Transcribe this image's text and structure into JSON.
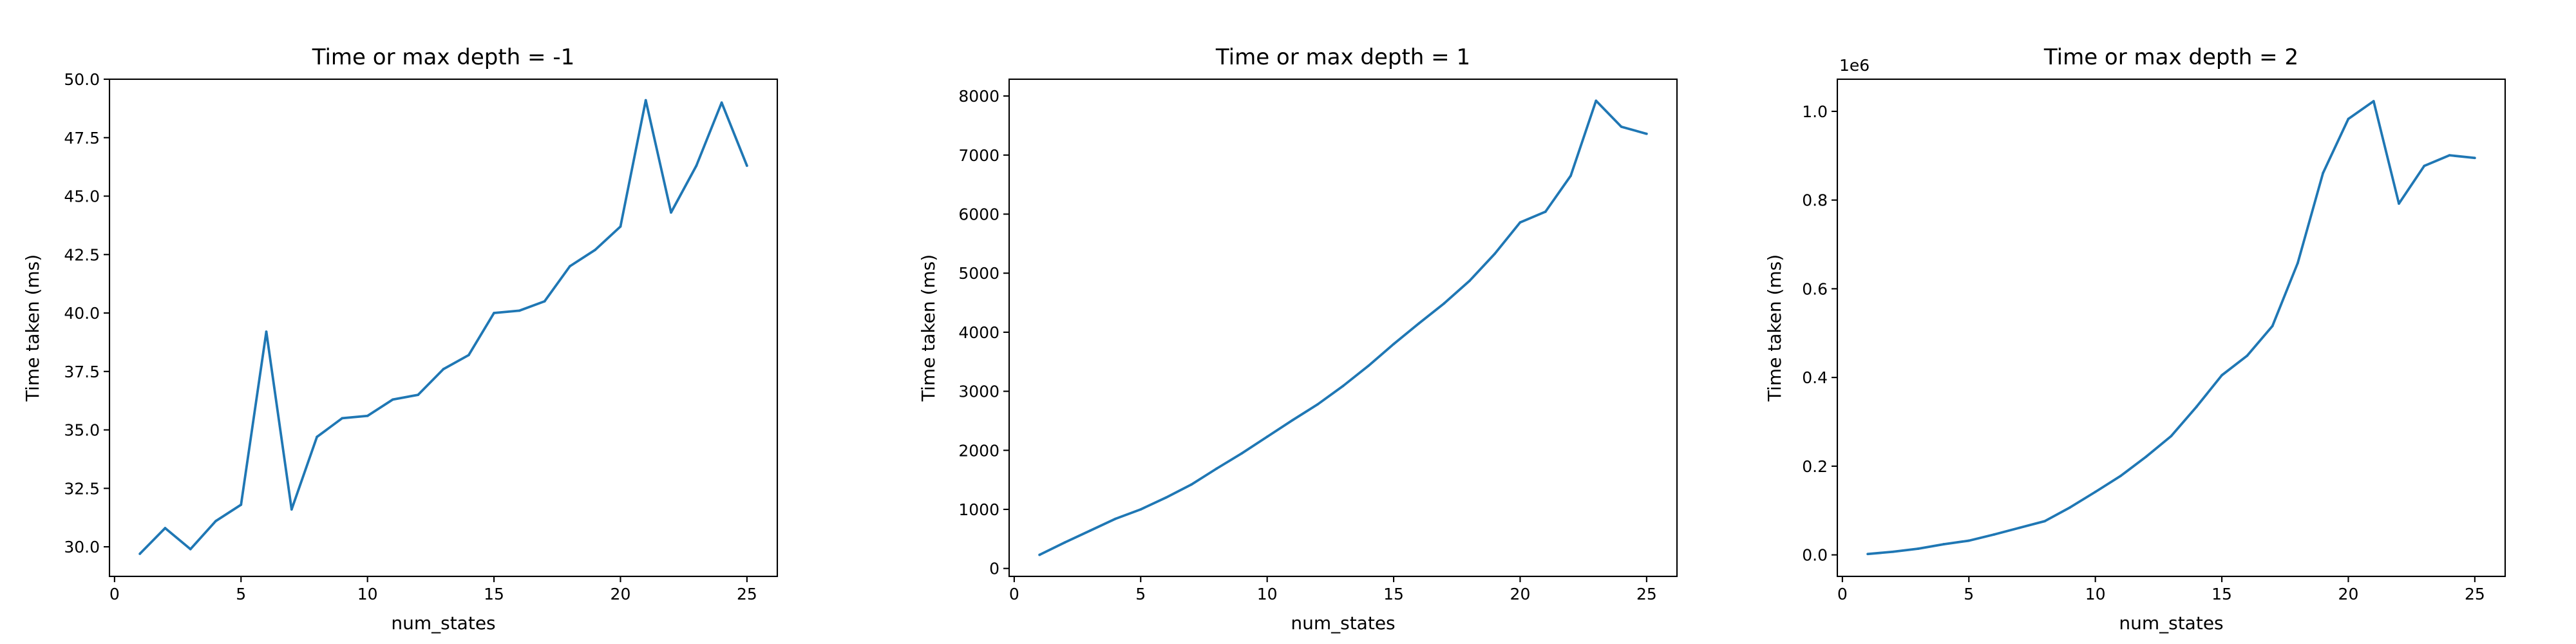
{
  "chart_data": [
    {
      "type": "line",
      "title": "Time or max depth = -1",
      "xlabel": "num_states",
      "ylabel": "Time taken (ms)",
      "x": [
        1,
        2,
        3,
        4,
        5,
        6,
        7,
        8,
        9,
        10,
        11,
        12,
        13,
        14,
        15,
        16,
        17,
        18,
        19,
        20,
        21,
        22,
        23,
        24,
        25
      ],
      "series": [
        {
          "values": [
            29.7,
            30.8,
            29.9,
            31.1,
            31.8,
            39.2,
            31.6,
            34.7,
            35.5,
            35.6,
            36.3,
            36.5,
            37.6,
            38.2,
            40.0,
            40.1,
            40.5,
            42.0,
            42.7,
            43.7,
            49.1,
            44.3,
            46.3,
            49.0,
            46.3
          ],
          "color": "#1f77b4"
        }
      ],
      "xlim": [
        -0.2,
        26.2
      ],
      "ylim": [
        28.735,
        50.0
      ],
      "xticks": [
        0,
        5,
        10,
        15,
        20,
        25
      ],
      "xtick_labels": [
        "0",
        "5",
        "10",
        "15",
        "20",
        "25"
      ],
      "yticks": [
        30.0,
        32.5,
        35.0,
        37.5,
        40.0,
        42.5,
        45.0,
        47.5,
        50.0
      ],
      "ytick_labels": [
        "30.0",
        "32.5",
        "35.0",
        "37.5",
        "40.0",
        "42.5",
        "45.0",
        "47.5",
        "50.0"
      ],
      "offset_text": "",
      "grid": false
    },
    {
      "type": "line",
      "title": "Time or max depth = 1",
      "xlabel": "num_states",
      "ylabel": "Time taken (ms)",
      "x": [
        1,
        2,
        3,
        4,
        5,
        6,
        7,
        8,
        9,
        10,
        11,
        12,
        13,
        14,
        15,
        16,
        17,
        18,
        19,
        20,
        21,
        22,
        23,
        24,
        25
      ],
      "series": [
        {
          "values": [
            230,
            440,
            640,
            840,
            1000,
            1200,
            1420,
            1690,
            1950,
            2230,
            2510,
            2780,
            3090,
            3430,
            3800,
            4150,
            4490,
            4870,
            5330,
            5860,
            6040,
            6650,
            7920,
            7480,
            7360
          ],
          "color": "#1f77b4"
        }
      ],
      "xlim": [
        -0.2,
        26.2
      ],
      "ylim": [
        -134.5,
        8284.5
      ],
      "xticks": [
        0,
        5,
        10,
        15,
        20,
        25
      ],
      "xtick_labels": [
        "0",
        "5",
        "10",
        "15",
        "20",
        "25"
      ],
      "yticks": [
        0,
        1000,
        2000,
        3000,
        4000,
        5000,
        6000,
        7000,
        8000
      ],
      "ytick_labels": [
        "0",
        "1000",
        "2000",
        "3000",
        "4000",
        "5000",
        "6000",
        "7000",
        "8000"
      ],
      "offset_text": "",
      "grid": false
    },
    {
      "type": "line",
      "title": "Time or max depth = 2",
      "xlabel": "num_states",
      "ylabel": "Time taken (ms)",
      "x": [
        1,
        2,
        3,
        4,
        5,
        6,
        7,
        8,
        9,
        10,
        11,
        12,
        13,
        14,
        15,
        16,
        17,
        18,
        19,
        20,
        21,
        22,
        23,
        24,
        25
      ],
      "series": [
        {
          "values": [
            0.002,
            0.007,
            0.014,
            0.024,
            0.032,
            0.046,
            0.061,
            0.076,
            0.107,
            0.142,
            0.178,
            0.221,
            0.268,
            0.334,
            0.405,
            0.449,
            0.516,
            0.658,
            0.861,
            0.983,
            1.023,
            0.792,
            0.877,
            0.901,
            0.895
          ],
          "color": "#1f77b4"
        }
      ],
      "xlim": [
        -0.2,
        26.2
      ],
      "ylim": [
        -0.0485,
        1.0725
      ],
      "xticks": [
        0,
        5,
        10,
        15,
        20,
        25
      ],
      "xtick_labels": [
        "0",
        "5",
        "10",
        "15",
        "20",
        "25"
      ],
      "yticks": [
        0.0,
        0.2,
        0.4,
        0.6,
        0.8,
        1.0
      ],
      "ytick_labels": [
        "0.0",
        "0.2",
        "0.4",
        "0.6",
        "0.8",
        "1.0"
      ],
      "offset_text": "1e6",
      "grid": false
    }
  ]
}
